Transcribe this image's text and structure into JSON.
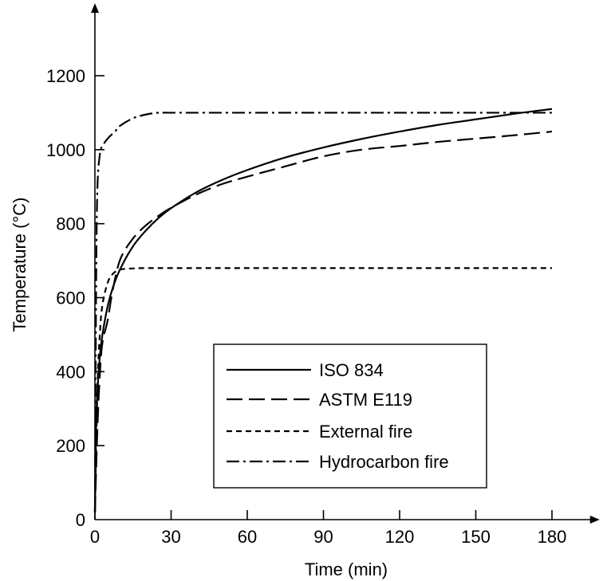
{
  "chart_data": {
    "type": "line",
    "xlabel": "Time (min)",
    "ylabel": "Temperature (°C)",
    "xlim": [
      0,
      195
    ],
    "ylim": [
      0,
      1370
    ],
    "xticks": [
      0,
      30,
      60,
      90,
      120,
      150,
      180
    ],
    "yticks": [
      0,
      200,
      400,
      600,
      800,
      1000,
      1200
    ],
    "legend_position": "lower-right",
    "grid": false,
    "series": [
      {
        "name": "ISO 834",
        "dash": "solid",
        "x": [
          0,
          0.5,
          1,
          2,
          3,
          5,
          7,
          10,
          15,
          20,
          25,
          30,
          40,
          50,
          60,
          75,
          90,
          105,
          120,
          135,
          150,
          165,
          180
        ],
        "y": [
          20,
          261,
          349,
          445,
          502,
          576,
          626,
          678,
          739,
          781,
          815,
          842,
          885,
          918,
          945,
          979,
          1006,
          1029,
          1049,
          1067,
          1082,
          1097,
          1110
        ]
      },
      {
        "name": "ASTM E119",
        "dash": "long-dash",
        "x": [
          0,
          1,
          2,
          3,
          5,
          7,
          10,
          15,
          20,
          25,
          30,
          40,
          50,
          60,
          75,
          90,
          105,
          120,
          135,
          150,
          165,
          180
        ],
        "y": [
          20,
          250,
          400,
          480,
          538,
          620,
          704,
          760,
          795,
          821,
          843,
          879,
          907,
          927,
          955,
          982,
          1000,
          1010,
          1021,
          1030,
          1039,
          1049
        ]
      },
      {
        "name": "External fire",
        "dash": "short-dash",
        "x": [
          0,
          1,
          2,
          3,
          5,
          7,
          10,
          15,
          20,
          30,
          60,
          90,
          120,
          150,
          180
        ],
        "y": [
          20,
          355,
          509,
          582,
          640,
          664,
          676,
          679,
          680,
          680,
          680,
          680,
          680,
          680,
          680
        ]
      },
      {
        "name": "Hydrocarbon fire",
        "dash": "dash-dot",
        "x": [
          0,
          0.5,
          1,
          2,
          3,
          5,
          8,
          10,
          15,
          20,
          25,
          30,
          60,
          90,
          120,
          150,
          180
        ],
        "y": [
          20,
          650,
          900,
          990,
          1010,
          1030,
          1050,
          1065,
          1085,
          1095,
          1100,
          1100,
          1100,
          1100,
          1100,
          1100,
          1100
        ]
      }
    ]
  }
}
